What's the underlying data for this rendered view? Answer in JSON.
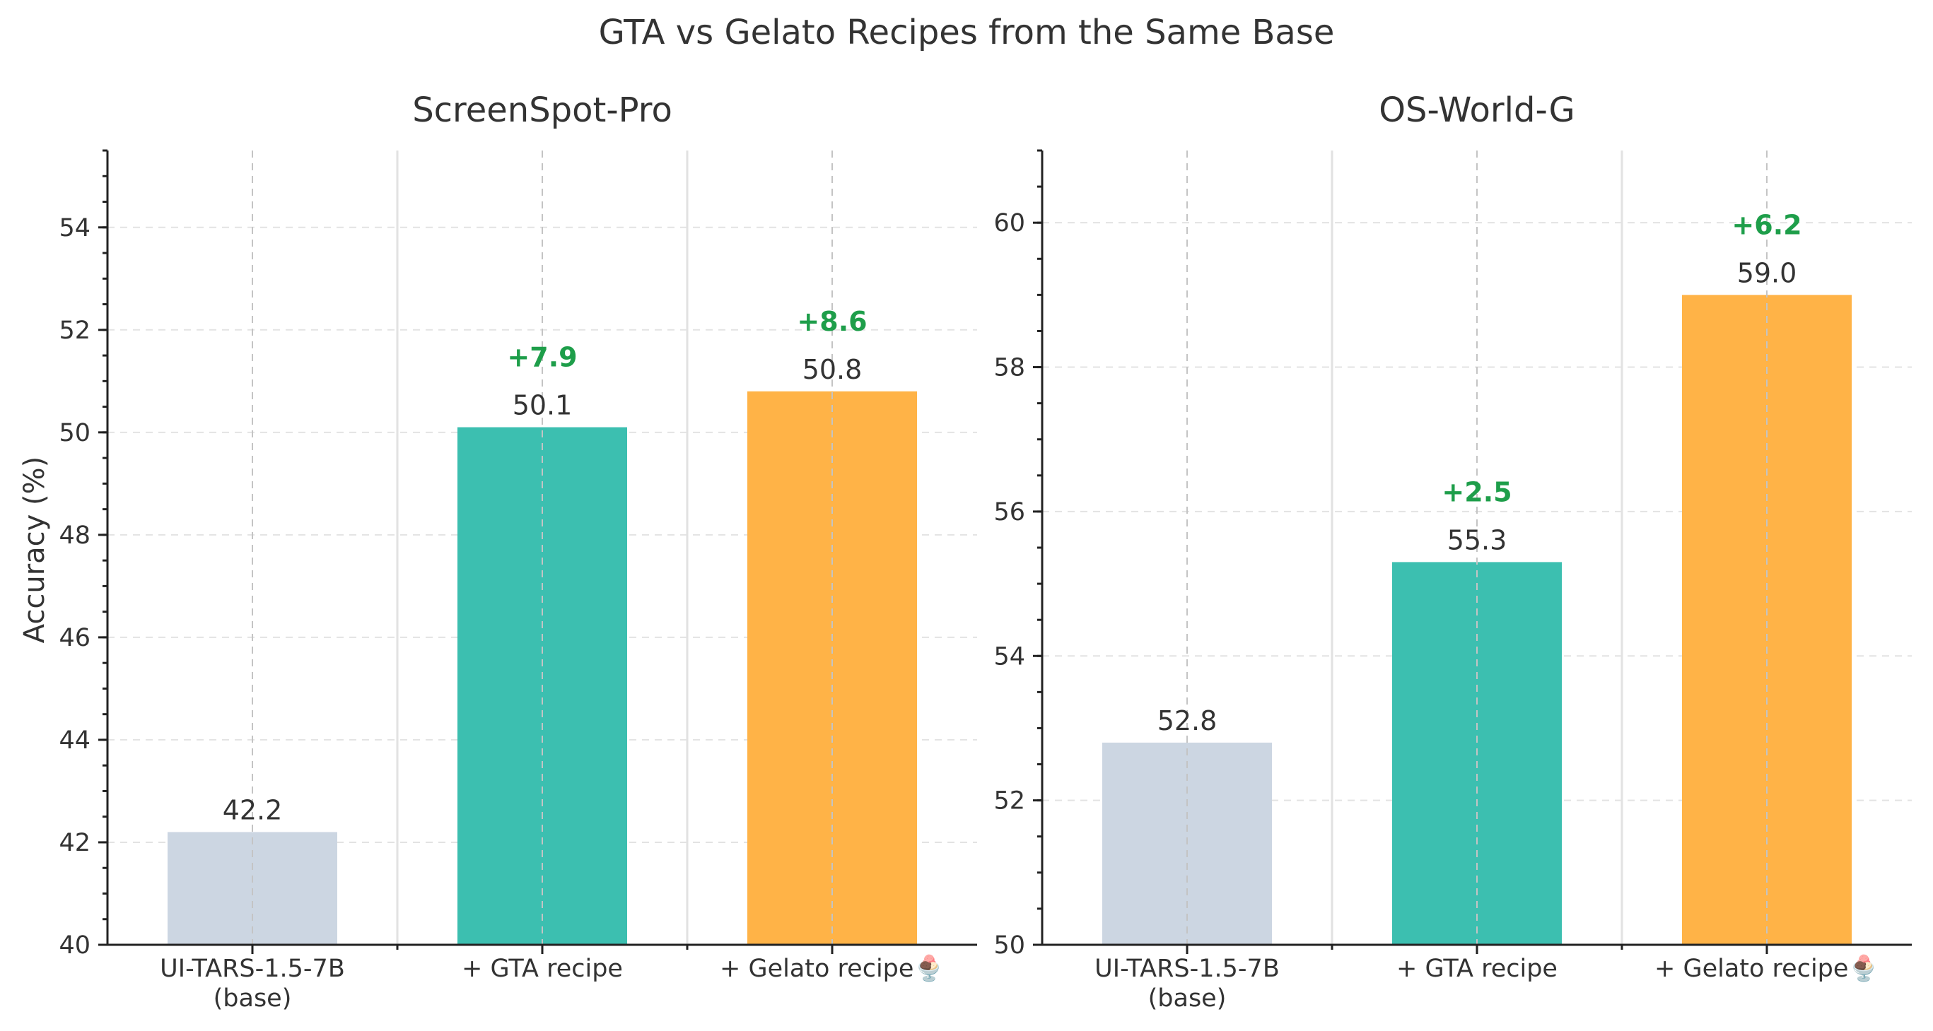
{
  "suptitle": "GTA vs Gelato Recipes from the Same Base",
  "ylabel": "Accuracy (%)",
  "colors": {
    "base": "#ccd6e2",
    "gta": "#3cbfb0",
    "gelato": "#ffb347",
    "delta": "#1e9e4a"
  },
  "chart_data": [
    {
      "type": "bar",
      "title": "ScreenSpot-Pro",
      "categories": [
        [
          "UI-TARS-1.5-7B",
          "(base)"
        ],
        [
          "+ GTA recipe"
        ],
        [
          "+ Gelato recipe🍨"
        ]
      ],
      "values": [
        42.2,
        50.1,
        50.8
      ],
      "value_labels": [
        "42.2",
        "50.1",
        "50.8"
      ],
      "deltas": [
        "",
        "+7.9",
        "+8.6"
      ],
      "bar_colors": [
        "base",
        "gta",
        "gelato"
      ],
      "ylim": [
        40,
        55.5
      ],
      "yticks": [
        40,
        42,
        44,
        46,
        48,
        50,
        52,
        54
      ],
      "ytick_labels": [
        "40",
        "42",
        "44",
        "46",
        "48",
        "50",
        "52",
        "54"
      ],
      "minor_step": 0.5,
      "grid": true
    },
    {
      "type": "bar",
      "title": "OS-World-G",
      "categories": [
        [
          "UI-TARS-1.5-7B",
          "(base)"
        ],
        [
          "+ GTA recipe"
        ],
        [
          "+ Gelato recipe🍨"
        ]
      ],
      "values": [
        52.8,
        55.3,
        59.0
      ],
      "value_labels": [
        "52.8",
        "55.3",
        "59.0"
      ],
      "deltas": [
        "",
        "+2.5",
        "+6.2"
      ],
      "bar_colors": [
        "base",
        "gta",
        "gelato"
      ],
      "ylim": [
        50,
        61
      ],
      "yticks": [
        50,
        52,
        54,
        56,
        58,
        60
      ],
      "ytick_labels": [
        "50",
        "52",
        "54",
        "56",
        "58",
        "60"
      ],
      "minor_step": 0.5,
      "grid": true
    }
  ]
}
